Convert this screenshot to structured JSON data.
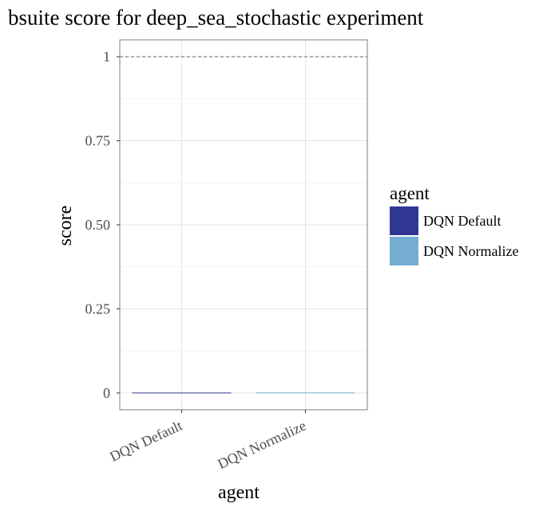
{
  "chart_data": {
    "type": "bar",
    "title": "bsuite score for deep_sea_stochastic experiment",
    "xlabel": "agent",
    "ylabel": "score",
    "categories": [
      "DQN Default",
      "DQN Normalize"
    ],
    "values": [
      0,
      0
    ],
    "ylim": [
      -0.05,
      1.05
    ],
    "yticks": [
      0,
      0.25,
      0.5,
      0.75,
      1
    ],
    "ytick_labels": [
      "0",
      "0.25",
      "0.50",
      "0.75",
      "1"
    ],
    "reference_line": 1,
    "grid": true,
    "legend": {
      "title": "agent",
      "position": "right",
      "entries": [
        {
          "label": "DQN Default",
          "color": "#313695"
        },
        {
          "label": "DQN Normalize",
          "color": "#74add1"
        }
      ]
    },
    "colors": [
      "#313695",
      "#74add1"
    ]
  }
}
